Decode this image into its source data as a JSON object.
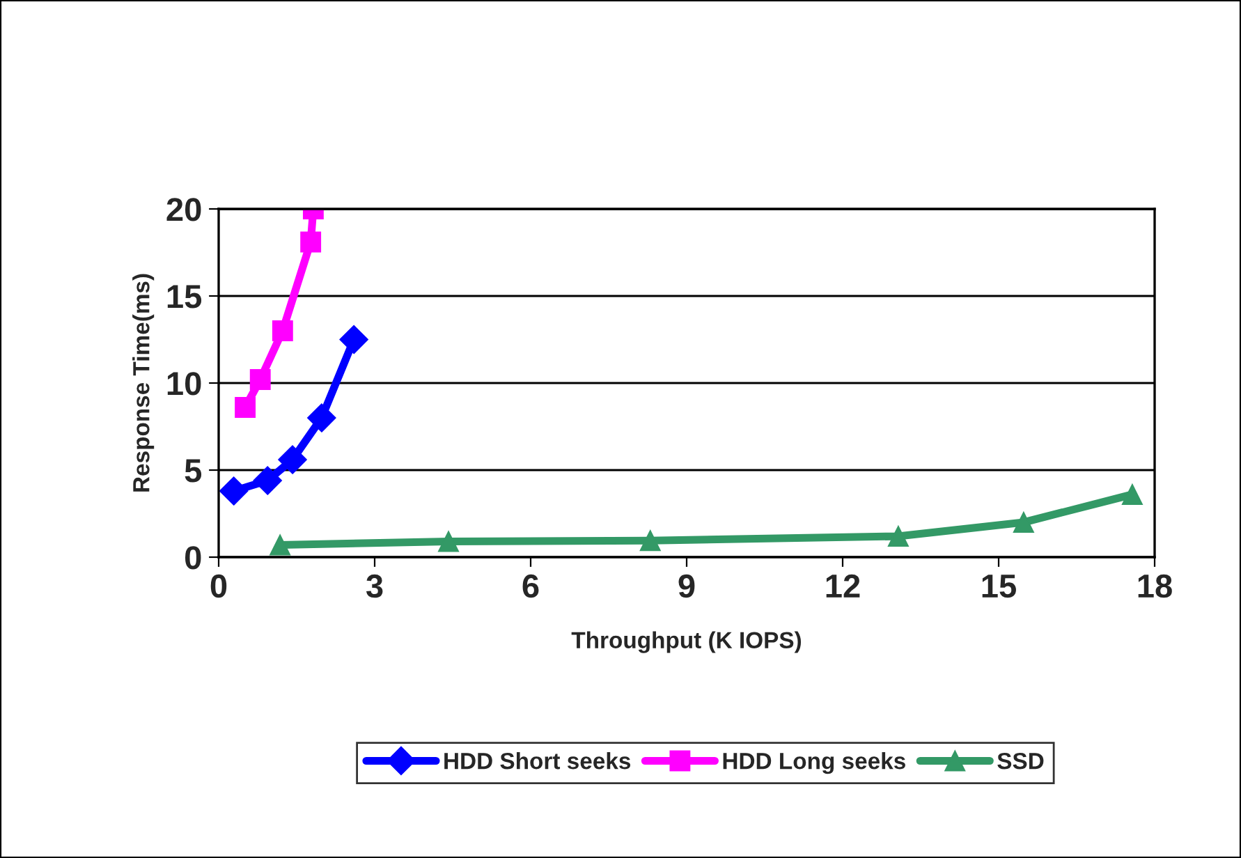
{
  "chart_data": {
    "type": "line",
    "xlabel": "Throughput (K IOPS)",
    "ylabel": "Response Time(ms)",
    "xlim": [
      0,
      18
    ],
    "xticks": [
      0,
      3,
      6,
      9,
      12,
      15,
      18
    ],
    "ylim": [
      0,
      20
    ],
    "yticks": [
      0,
      5,
      10,
      15,
      20
    ],
    "grid": "y",
    "legend": "bottom",
    "line_style": "solid",
    "series": [
      {
        "name": "HDD Short seeks",
        "color": "#0000ff",
        "marker": "diamond",
        "x": [
          0.29,
          0.94,
          1.42,
          1.98,
          2.6
        ],
        "values": [
          3.8,
          4.4,
          5.6,
          8.0,
          12.5
        ]
      },
      {
        "name": "HDD Long seeks",
        "color": "#ff00ff",
        "marker": "square",
        "x": [
          0.51,
          0.8,
          1.23,
          1.77,
          1.82
        ],
        "values": [
          8.6,
          10.2,
          13.0,
          18.1,
          20
        ]
      },
      {
        "name": "SSD",
        "color": "#339966",
        "marker": "triangle",
        "x": [
          1.18,
          4.42,
          8.3,
          13.07,
          15.48,
          17.57
        ],
        "values": [
          0.7,
          0.9,
          0.95,
          1.2,
          2.0,
          3.6
        ]
      }
    ]
  }
}
